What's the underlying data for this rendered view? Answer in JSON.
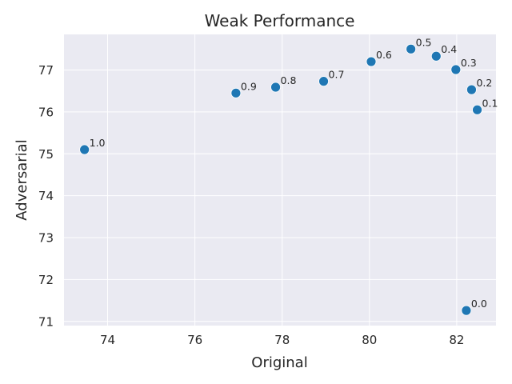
{
  "chart_data": {
    "type": "scatter",
    "title": "Weak Performance",
    "xlabel": "Original",
    "ylabel": "Adversarial",
    "xlim": [
      73.0,
      82.9
    ],
    "ylim": [
      70.9,
      77.85
    ],
    "xticks": [
      "74",
      "76",
      "78",
      "80",
      "82"
    ],
    "yticks": [
      "71",
      "72",
      "73",
      "74",
      "75",
      "76",
      "77"
    ],
    "grid": true,
    "background_color": "#eaeaf2",
    "marker_color": "#1f77b4",
    "points": [
      {
        "x": 82.22,
        "y": 71.26,
        "label": "0.0"
      },
      {
        "x": 82.47,
        "y": 76.05,
        "label": "0.1"
      },
      {
        "x": 82.34,
        "y": 76.53,
        "label": "0.2"
      },
      {
        "x": 81.98,
        "y": 77.01,
        "label": "0.3"
      },
      {
        "x": 81.53,
        "y": 77.33,
        "label": "0.4"
      },
      {
        "x": 80.95,
        "y": 77.5,
        "label": "0.5"
      },
      {
        "x": 80.04,
        "y": 77.2,
        "label": "0.6"
      },
      {
        "x": 78.95,
        "y": 76.73,
        "label": "0.7"
      },
      {
        "x": 77.85,
        "y": 76.59,
        "label": "0.8"
      },
      {
        "x": 76.94,
        "y": 76.45,
        "label": "0.9"
      },
      {
        "x": 73.47,
        "y": 75.1,
        "label": "1.0"
      }
    ]
  }
}
